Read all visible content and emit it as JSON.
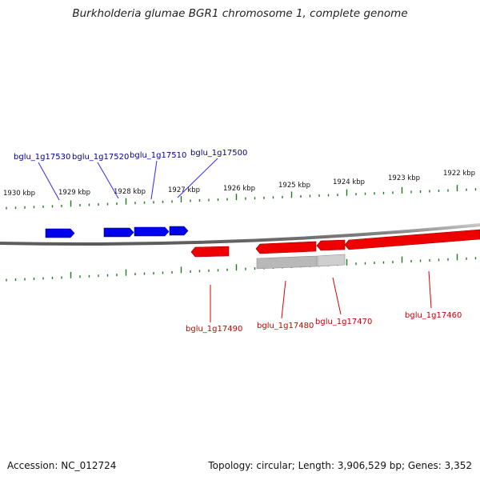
{
  "title": "Burkholderia glumae BGR1 chromosome 1, complete genome",
  "footer": {
    "accession": "Accession: NC_012724",
    "summary": "Topology: circular; Length: 3,906,529 bp; Genes: 3,352"
  },
  "colors": {
    "forward": "#0000ee",
    "reverse": "#ee0000",
    "other": "#b8b8b8",
    "tick": "#1e7a1e",
    "backbone": "#7f7f7f",
    "forward_label": "#00008b",
    "reverse_label": "#cc0000"
  },
  "kbp_labels": [
    "1930 kbp",
    "1929 kbp",
    "1928 kbp",
    "1927 kbp",
    "1926 kbp",
    "1925 kbp",
    "1924 kbp",
    "1923 kbp",
    "1922 kbp"
  ],
  "genes": {
    "forward": [
      "bglu_1g17530",
      "bglu_1g17520",
      "bglu_1g17510",
      "bglu_1g17500"
    ],
    "reverse": [
      "bglu_1g17490",
      "bglu_1g17480",
      "bglu_1g17470",
      "bglu_1g17460"
    ]
  }
}
